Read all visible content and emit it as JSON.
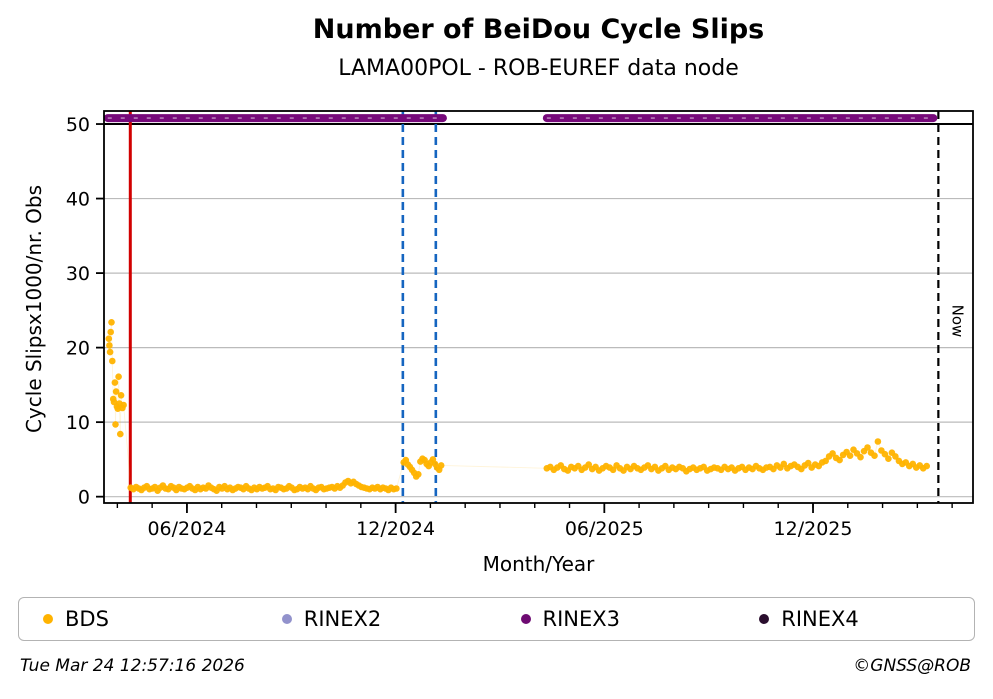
{
  "title": "Number of BeiDou Cycle Slips",
  "subtitle": "LAMA00POL - ROB-EUREF data node",
  "footer": {
    "timestamp": "Tue Mar 24 12:57:16 2026",
    "credit": "©GNSS@ROB"
  },
  "legend": {
    "items": [
      {
        "label": "BDS",
        "color": "#FFB300",
        "marker": "dot-icon"
      },
      {
        "label": "RINEX2",
        "color": "#9292CC",
        "marker": "dot-icon"
      },
      {
        "label": "RINEX3",
        "color": "#6E0B72",
        "marker": "dot-icon"
      },
      {
        "label": "RINEX4",
        "color": "#2A0E2E",
        "marker": "dot-icon"
      }
    ]
  },
  "chart_data": {
    "type": "scatter",
    "title": "Number of BeiDou Cycle Slips",
    "subtitle": "LAMA00POL - ROB-EUREF data node",
    "xlabel": "Month/Year",
    "ylabel": "Cycle Slipsx1000/nr. Obs",
    "x_unit": "decimal_year",
    "xlim": [
      2024.218,
      2026.3
    ],
    "ylim": [
      -0.85,
      51.75
    ],
    "yticks": [
      0,
      10,
      20,
      30,
      40,
      50
    ],
    "xticks": [
      {
        "value": 2024.4167,
        "label": "06/2024"
      },
      {
        "value": 2024.9167,
        "label": "12/2024"
      },
      {
        "value": 2025.4167,
        "label": "06/2025"
      },
      {
        "value": 2025.9167,
        "label": "12/2025"
      }
    ],
    "minor_xtick_interval_months": 1,
    "grid_color": "#bbbbbb",
    "threshold_line": {
      "y": 50,
      "color": "#000000",
      "width": 2
    },
    "vlines": [
      {
        "x": 2024.281,
        "color": "#D10000",
        "style": "solid",
        "width": 3,
        "name": "data-start-line"
      },
      {
        "x": 2024.934,
        "color": "#1565C0",
        "style": "dashed",
        "width": 2.6,
        "name": "gap-start-line"
      },
      {
        "x": 2025.013,
        "color": "#1565C0",
        "style": "dashed",
        "width": 2.6,
        "name": "gap-end-line"
      },
      {
        "x": 2026.217,
        "color": "#000000",
        "style": "dashed",
        "width": 2.2,
        "name": "now-line",
        "label": "Now"
      }
    ],
    "series": [
      {
        "name": "BDS",
        "color": "#FFB300",
        "marker_radius": 3.3,
        "connect_alpha": 0.15,
        "segments": [
          {
            "points": [
              [
                2024.2295,
                21.2
              ],
              [
                2024.231,
                20.3
              ],
              [
                2024.2325,
                19.4
              ],
              [
                2024.234,
                22.1
              ],
              [
                2024.236,
                23.4
              ],
              [
                2024.238,
                18.2
              ],
              [
                2024.24,
                13.1
              ],
              [
                2024.242,
                12.7
              ],
              [
                2024.244,
                15.3
              ],
              [
                2024.2455,
                9.7
              ],
              [
                2024.247,
                14.1
              ],
              [
                2024.249,
                12.1
              ],
              [
                2024.251,
                11.8
              ],
              [
                2024.253,
                16.1
              ],
              [
                2024.255,
                12.5
              ],
              [
                2024.257,
                8.4
              ],
              [
                2024.259,
                13.6
              ],
              [
                2024.262,
                11.9
              ],
              [
                2024.265,
                12.3
              ]
            ]
          },
          {
            "x_start": 2024.282,
            "x_step": 0.00643,
            "values": [
              1.2,
              1.0,
              1.3,
              1.1,
              0.9,
              1.2,
              1.4,
              1.0,
              1.1,
              1.3,
              0.8,
              1.2,
              1.5,
              1.1,
              1.0,
              1.4,
              1.2,
              0.9,
              1.3,
              1.1,
              1.0,
              1.2,
              1.4,
              1.1,
              0.9,
              1.3,
              1.0,
              1.2,
              1.1,
              1.5,
              1.2,
              1.0,
              0.8,
              1.3,
              1.1,
              1.4,
              1.0,
              1.2,
              0.9,
              1.1,
              1.3,
              1.2,
              1.0,
              1.4,
              1.1,
              0.9,
              1.2,
              1.0,
              1.3,
              1.1,
              1.2,
              1.4,
              1.0,
              1.1,
              0.9,
              1.3,
              1.2,
              1.0,
              1.1,
              1.4,
              1.2,
              0.9,
              1.0,
              1.3,
              1.1,
              1.2,
              1.0,
              1.4,
              1.1,
              0.9,
              1.2,
              1.3,
              1.0,
              1.1,
              1.2,
              1.3,
              1.1,
              1.4,
              1.2,
              1.5,
              1.9,
              2.1,
              1.8,
              2.0,
              1.7,
              1.5,
              1.3,
              1.2,
              1.1,
              1.0,
              1.2,
              1.1,
              1.3,
              1.0,
              1.2,
              1.1,
              0.9,
              1.2,
              1.0,
              1.1
            ]
          },
          {
            "points": [
              [
                2024.936,
                4.6
              ],
              [
                2024.941,
                4.9
              ],
              [
                2024.946,
                4.3
              ],
              [
                2024.951,
                4.0
              ],
              [
                2024.956,
                3.6
              ],
              [
                2024.961,
                3.2
              ],
              [
                2024.966,
                2.7
              ],
              [
                2024.971,
                3.0
              ],
              [
                2024.976,
                4.7
              ],
              [
                2024.981,
                5.1
              ],
              [
                2024.986,
                4.9
              ],
              [
                2024.991,
                4.4
              ],
              [
                2024.996,
                4.1
              ],
              [
                2025.001,
                4.6
              ],
              [
                2025.006,
                5.0
              ],
              [
                2025.011,
                4.4
              ],
              [
                2025.016,
                3.9
              ],
              [
                2025.021,
                3.6
              ],
              [
                2025.026,
                4.2
              ]
            ]
          },
          {
            "x_start": 2025.279,
            "x_step": 0.00835,
            "values": [
              3.8,
              4.0,
              3.6,
              3.9,
              4.2,
              3.7,
              3.5,
              4.0,
              3.8,
              4.1,
              3.6,
              3.9,
              4.3,
              3.7,
              4.0,
              3.5,
              3.8,
              4.1,
              3.9,
              3.6,
              4.2,
              3.8,
              3.5,
              4.0,
              3.7,
              4.1,
              3.8,
              3.6,
              3.9,
              4.2,
              3.7,
              4.0,
              3.5,
              3.8,
              4.1,
              3.6,
              3.9,
              3.7,
              4.0,
              3.8,
              3.4,
              3.7,
              3.9,
              3.6,
              3.8,
              4.0,
              3.5,
              3.7,
              3.9,
              3.8,
              3.6,
              4.0,
              3.7,
              3.9,
              3.5,
              3.8,
              4.0,
              3.6,
              3.9,
              3.7,
              4.1,
              3.8,
              3.6,
              3.9,
              4.0,
              3.7,
              4.2,
              3.9,
              4.4,
              3.8,
              4.1,
              4.3,
              4.0,
              3.7,
              4.2,
              4.5,
              3.9,
              4.3,
              4.1,
              4.6,
              4.8,
              5.4,
              5.8,
              5.2,
              4.9,
              5.6,
              6.0,
              5.5,
              6.3,
              5.8,
              5.3,
              6.1,
              6.6,
              5.9,
              5.5,
              7.4,
              6.2,
              5.7,
              5.1,
              5.9,
              5.4,
              4.8,
              4.4,
              4.6,
              4.1,
              4.4,
              3.9,
              4.2,
              3.8,
              4.1
            ]
          }
        ]
      },
      {
        "name": "RINEX2",
        "color": "#9292CC",
        "segments": []
      },
      {
        "name": "RINEX3",
        "color": "#76097A",
        "line_y": 50.8,
        "line_width": 8,
        "line_segments": [
          [
            2024.227,
            2025.03
          ],
          [
            2025.279,
            2026.205
          ]
        ]
      },
      {
        "name": "RINEX4",
        "color": "#2A0E2E",
        "segments": []
      }
    ]
  }
}
